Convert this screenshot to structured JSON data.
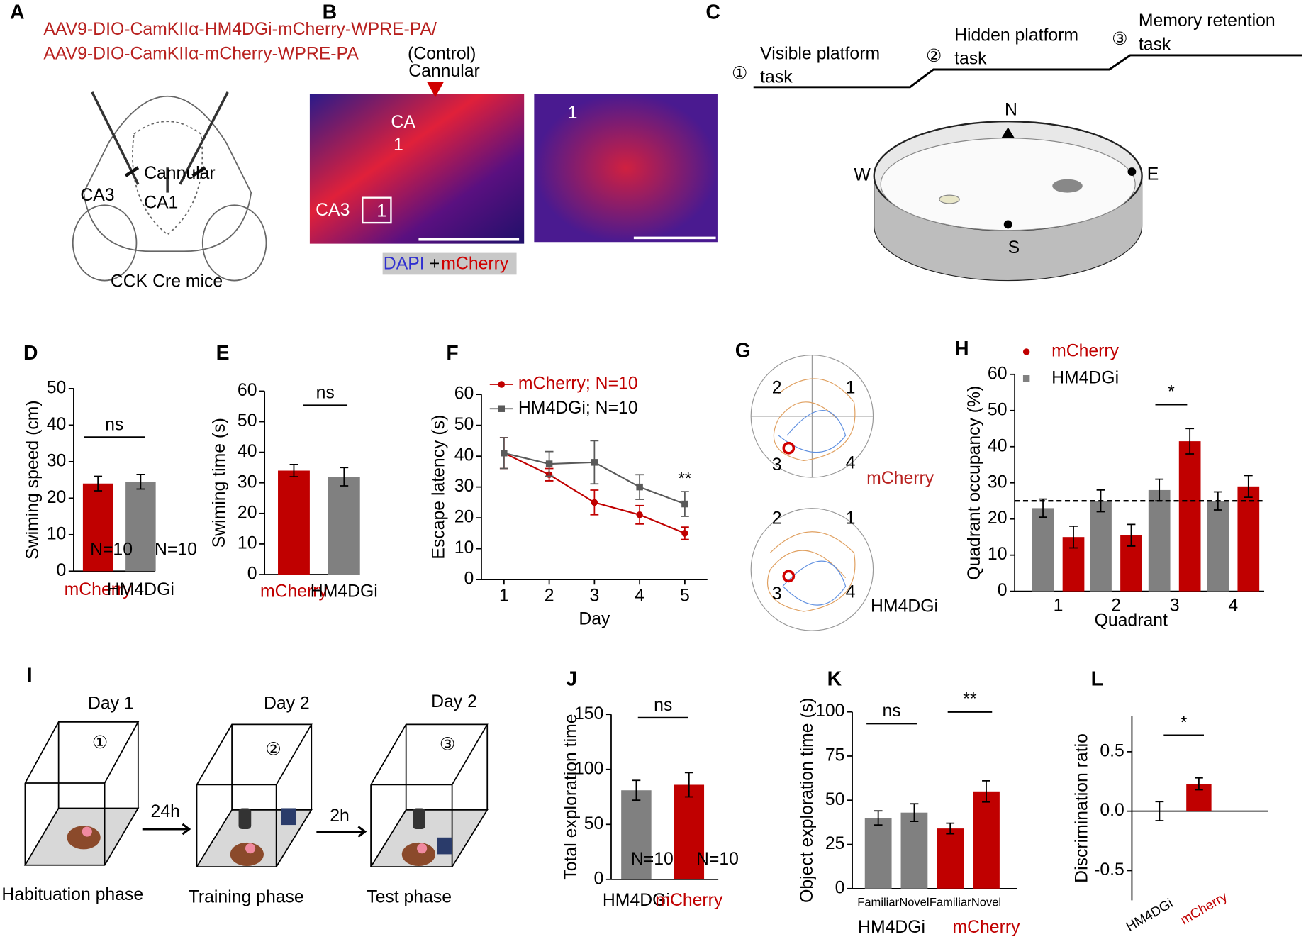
{
  "figure": {
    "A": {
      "label": "A",
      "construct_1": "AAV9-DIO-CamKIIα-HM4DGi-mCherry-WPRE-PA/",
      "construct_2": "AAV9-DIO-CamKIIα-mCherry-WPRE-PA",
      "control": "(Control)",
      "cannular": "Cannular",
      "ca3": "CA3",
      "ca1": "CA1",
      "caption": "CCK Cre mice"
    },
    "B": {
      "label": "B",
      "cannular": "Cannular",
      "ca": "CA",
      "ca_num": "1",
      "ca3": "CA3",
      "box": "1",
      "zoom": "1",
      "dapi": "DAPI",
      "plus": "+",
      "mcherry": "mCherry"
    },
    "C": {
      "label": "C",
      "steps": [
        {
          "num": "①",
          "line1": "Visible platform",
          "line2": "task"
        },
        {
          "num": "②",
          "line1": "Hidden platform",
          "line2": "task"
        },
        {
          "num": "③",
          "line1": "Memory retention",
          "line2": "task"
        }
      ],
      "north": "N",
      "west": "W",
      "east": "E",
      "south": "S"
    },
    "G": {
      "label": "G",
      "quadrants": [
        "1",
        "2",
        "3",
        "4"
      ],
      "groups": [
        "mCherry",
        "HM4DGi"
      ]
    },
    "I": {
      "label": "I",
      "days": [
        "Day 1",
        "Day 2",
        "Day 2"
      ],
      "steps": [
        "①",
        "②",
        "③"
      ],
      "intervals": [
        "24h",
        "2h"
      ],
      "phases": [
        "Habituation phase",
        "Training phase",
        "Test phase"
      ]
    }
  },
  "chart_data": [
    {
      "panel": "D",
      "type": "bar",
      "categories": [
        "mCherry",
        "HM4DGi"
      ],
      "category_colors": [
        "#c00000",
        "#000000"
      ],
      "values": [
        24,
        24.5
      ],
      "errors": [
        2,
        2
      ],
      "colors": [
        "#c00000",
        "#808080"
      ],
      "ylabel": "Swiming speed (cm)",
      "ylim": [
        0,
        50
      ],
      "yticks": [
        0,
        10,
        20,
        30,
        40,
        50
      ],
      "significance": [
        "ns"
      ],
      "n_labels": [
        "N=10",
        "N=10"
      ]
    },
    {
      "panel": "E",
      "type": "bar",
      "categories": [
        "mCherry",
        "HM4DGi"
      ],
      "category_colors": [
        "#c00000",
        "#000000"
      ],
      "values": [
        34,
        32
      ],
      "errors": [
        2,
        3
      ],
      "colors": [
        "#c00000",
        "#808080"
      ],
      "ylabel": "Swiming time (s)",
      "ylim": [
        0,
        60
      ],
      "yticks": [
        0,
        10,
        20,
        30,
        40,
        50,
        60
      ],
      "significance": [
        "ns"
      ]
    },
    {
      "panel": "F",
      "type": "line",
      "x": [
        1,
        2,
        3,
        4,
        5
      ],
      "xlim": [
        0.5,
        5.5
      ],
      "xticks": [
        1,
        2,
        3,
        4,
        5
      ],
      "xlabel": "Day",
      "ylabel": "Escape latency (s)",
      "ylim": [
        0,
        60
      ],
      "yticks": [
        0,
        10,
        20,
        30,
        40,
        50,
        60
      ],
      "legend_text_colors": [
        "#c00000",
        "#000000"
      ],
      "series": [
        {
          "name": "mCherry; N=10",
          "color": "#c00000",
          "marker": "circle",
          "values": [
            41,
            34,
            25,
            21,
            15
          ],
          "errors": [
            5,
            2,
            4,
            3,
            2
          ]
        },
        {
          "name": "HM4DGi; N=10",
          "color": "#595959",
          "marker": "square",
          "values": [
            41,
            37.5,
            38,
            30,
            24.5
          ],
          "errors": [
            5,
            4,
            7,
            4,
            4
          ]
        }
      ],
      "significance": [
        "**"
      ]
    },
    {
      "panel": "H",
      "type": "grouped_bar",
      "categories": [
        "1",
        "2",
        "3",
        "4"
      ],
      "xlabel": "Quadrant",
      "ylabel": "Quadrant occupancy (%)",
      "ylim": [
        0,
        60
      ],
      "yticks": [
        0,
        10,
        20,
        30,
        40,
        50,
        60
      ],
      "reference_line": 25,
      "legend_text_colors": [
        "#c00000",
        "#000000"
      ],
      "series": [
        {
          "name": "mCherry",
          "color": "#c00000",
          "marker": "circle",
          "values": [
            15,
            15.5,
            41.5,
            29
          ],
          "errors": [
            3,
            3,
            3.5,
            3
          ]
        },
        {
          "name": "HM4DGi",
          "color": "#808080",
          "marker": "square",
          "values": [
            23,
            25,
            28,
            25
          ],
          "errors": [
            2.5,
            3,
            3,
            2.5
          ]
        }
      ],
      "significance": [
        "*"
      ]
    },
    {
      "panel": "J",
      "type": "bar",
      "categories": [
        "HM4DGi",
        "mCherry"
      ],
      "category_colors": [
        "#000000",
        "#c00000"
      ],
      "values": [
        81,
        86
      ],
      "errors": [
        9,
        11
      ],
      "colors": [
        "#808080",
        "#c00000"
      ],
      "ylabel": "Total exploration time",
      "ylim": [
        0,
        150
      ],
      "yticks": [
        0,
        50,
        100,
        150
      ],
      "significance": [
        "ns"
      ],
      "n_labels": [
        "N=10",
        "N=10"
      ]
    },
    {
      "panel": "K",
      "type": "bar",
      "categories": [
        "Familiar",
        "Novel",
        "Familiar",
        "Novel"
      ],
      "values": [
        40,
        43,
        34,
        55
      ],
      "errors": [
        4,
        5,
        3,
        6
      ],
      "colors": [
        "#808080",
        "#808080",
        "#c00000",
        "#c00000"
      ],
      "groups": [
        "HM4DGi",
        "mCherry"
      ],
      "group_colors": [
        "#000000",
        "#c00000"
      ],
      "ylabel": "Object exploration time (s)",
      "ylim": [
        0,
        100
      ],
      "yticks": [
        0,
        25,
        50,
        75,
        100
      ],
      "significance": [
        "ns",
        "**"
      ]
    },
    {
      "panel": "L",
      "type": "bar",
      "categories": [
        "HM4DGi",
        "mCherry"
      ],
      "category_colors": [
        "#000000",
        "#c00000"
      ],
      "values": [
        0,
        0.23
      ],
      "errors": [
        0.08,
        0.05
      ],
      "colors": [
        "#808080",
        "#c00000"
      ],
      "ylabel": "Discrimination ratio",
      "ylim": [
        -0.75,
        0.8
      ],
      "yticks": [
        -0.5,
        {
          "value": 0,
          "label": "0.0"
        },
        0.5
      ],
      "significance": [
        "*"
      ]
    }
  ]
}
